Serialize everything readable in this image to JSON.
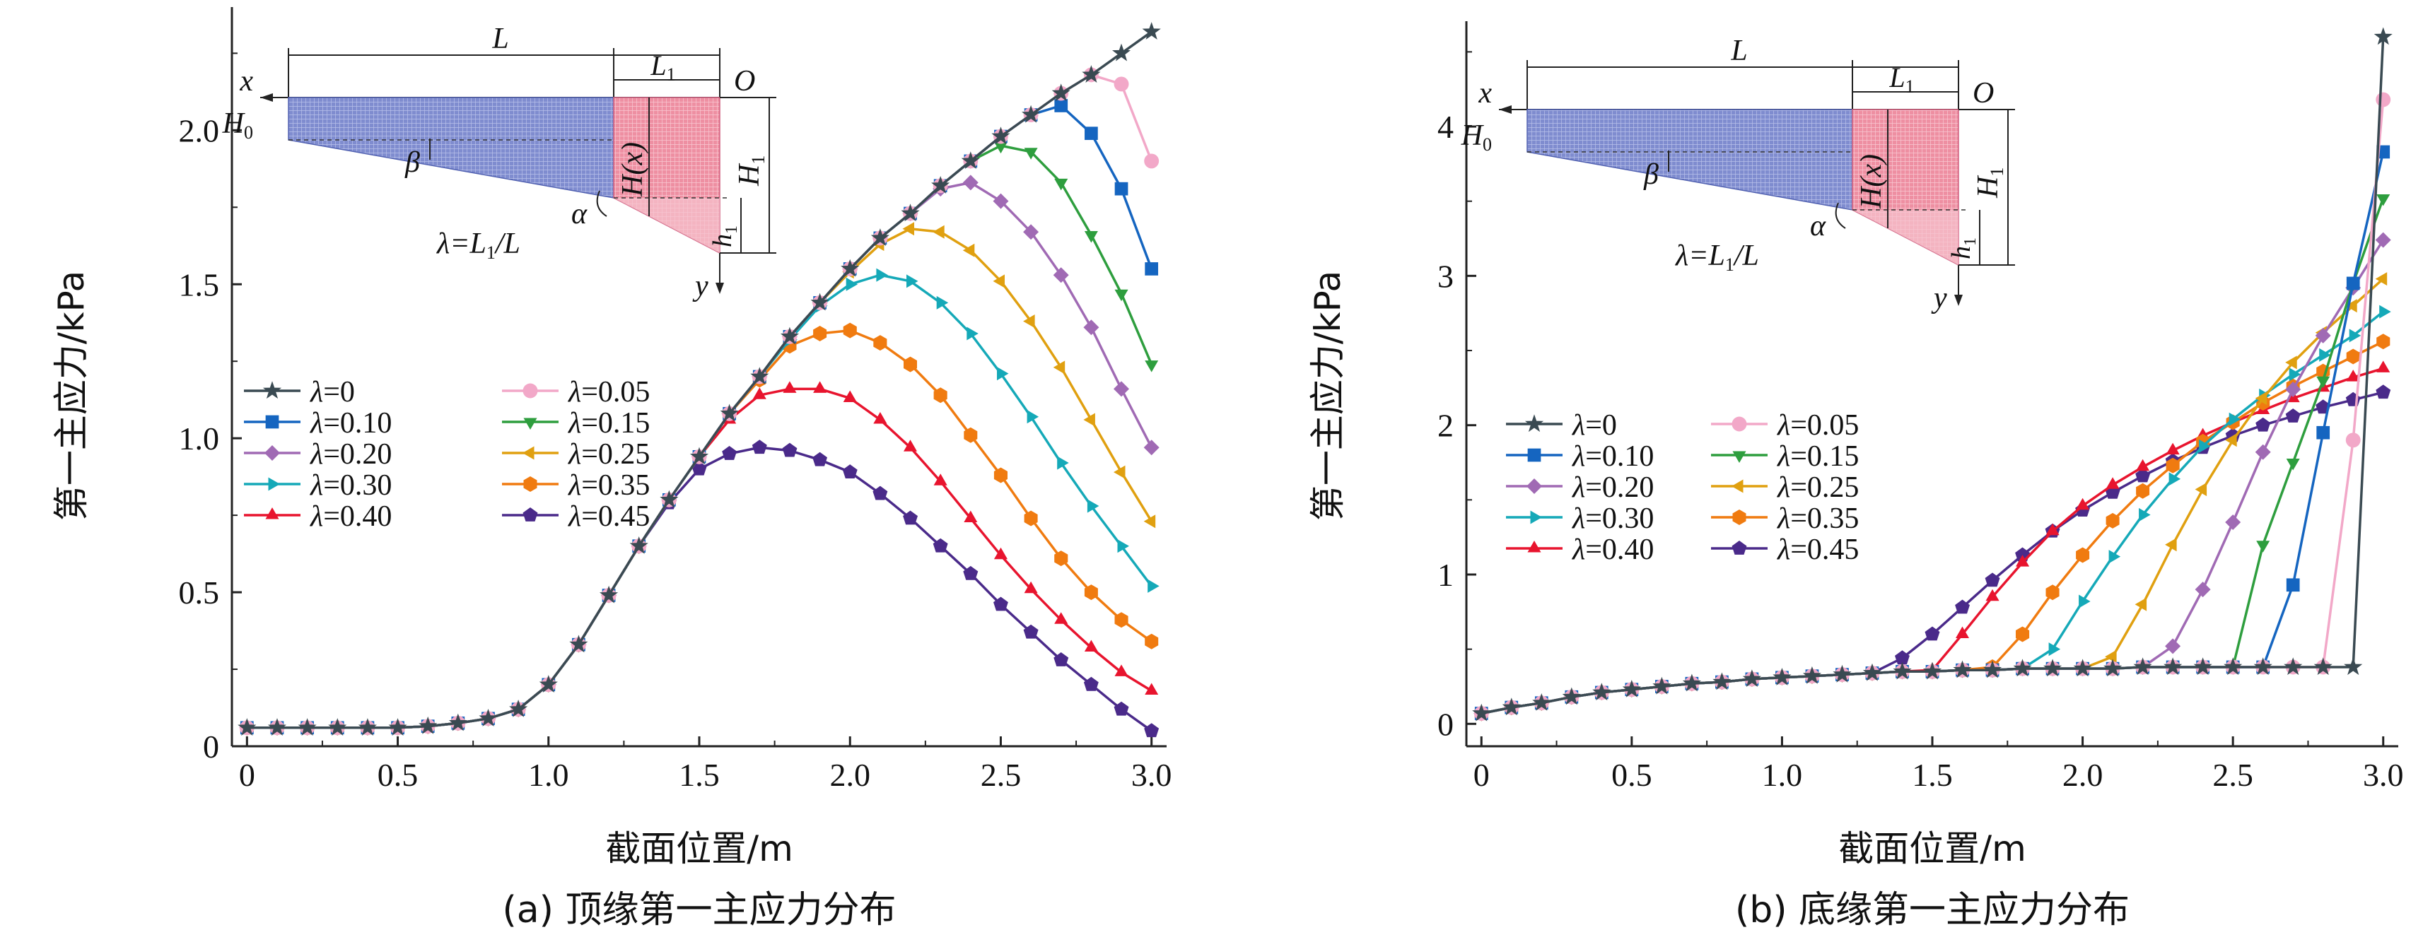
{
  "figure": {
    "x_tick_labels": [
      "0",
      "0.5",
      "1.0",
      "1.5",
      "2.0",
      "2.5",
      "3.0"
    ],
    "x_ticks": [
      0,
      0.5,
      1.0,
      1.5,
      2.0,
      2.5,
      3.0
    ]
  },
  "series_styles": [
    {
      "lambda": "0",
      "label": "λ=0",
      "color": "#3a4a52",
      "marker": "star"
    },
    {
      "lambda": "0.05",
      "label": "λ=0.05",
      "color": "#f2a8c8",
      "marker": "circle"
    },
    {
      "lambda": "0.10",
      "label": "λ=0.10",
      "color": "#1565c0",
      "marker": "square"
    },
    {
      "lambda": "0.15",
      "label": "λ=0.15",
      "color": "#2e9e3e",
      "marker": "triangle-down"
    },
    {
      "lambda": "0.20",
      "label": "λ=0.20",
      "color": "#a06ab4",
      "marker": "diamond"
    },
    {
      "lambda": "0.25",
      "label": "λ=0.25",
      "color": "#e0a010",
      "marker": "triangle-left"
    },
    {
      "lambda": "0.30",
      "label": "λ=0.30",
      "color": "#15a9b8",
      "marker": "triangle-right"
    },
    {
      "lambda": "0.35",
      "label": "λ=0.35",
      "color": "#f07b10",
      "marker": "hexagon"
    },
    {
      "lambda": "0.40",
      "label": "λ=0.40",
      "color": "#e8142e",
      "marker": "triangle-up"
    },
    {
      "lambda": "0.45",
      "label": "λ=0.45",
      "color": "#4a2a8a",
      "marker": "pentagon"
    }
  ],
  "inset": {
    "L": "L",
    "L1": "L",
    "L1_sub": "1",
    "O": "O",
    "x": "x",
    "y": "y",
    "H0": "H",
    "H0_sub": "0",
    "H1": "H",
    "H1_sub": "1",
    "Hx": "H(x)",
    "h1": "h",
    "h1_sub": "1",
    "alpha": "α",
    "beta": "β",
    "lambda_def_pre": "λ=L",
    "lambda_def_sub": "1",
    "lambda_def_post": "/L"
  },
  "chart_data": [
    {
      "type": "line",
      "caption": "(a) 顶缘第一主应力分布",
      "xlabel": "截面位置/m",
      "ylabel": "第一主应力/kPa",
      "xlim": [
        -0.05,
        3.05
      ],
      "ylim": [
        0,
        2.4
      ],
      "y_ticks": [
        0,
        0.5,
        1.0,
        1.5,
        2.0
      ],
      "y_tick_labels": [
        "0",
        "0.5",
        "1.0",
        "1.5",
        "2.0"
      ],
      "legend": "upper-left",
      "x": [
        0,
        0.1,
        0.2,
        0.3,
        0.4,
        0.5,
        0.6,
        0.7,
        0.8,
        0.9,
        1.0,
        1.1,
        1.2,
        1.3,
        1.4,
        1.5,
        1.6,
        1.7,
        1.8,
        1.9,
        2.0,
        2.1,
        2.2,
        2.3,
        2.4,
        2.5,
        2.6,
        2.7,
        2.8,
        2.9,
        3.0
      ],
      "series": [
        {
          "name": "λ=0",
          "values": [
            0.06,
            0.06,
            0.06,
            0.06,
            0.06,
            0.06,
            0.065,
            0.075,
            0.09,
            0.12,
            0.2,
            0.33,
            0.49,
            0.65,
            0.8,
            0.94,
            1.08,
            1.2,
            1.33,
            1.44,
            1.55,
            1.65,
            1.73,
            1.82,
            1.9,
            1.98,
            2.05,
            2.12,
            2.18,
            2.25,
            2.32
          ]
        },
        {
          "name": "λ=0.05",
          "values": [
            0.06,
            0.06,
            0.06,
            0.06,
            0.06,
            0.06,
            0.065,
            0.075,
            0.09,
            0.12,
            0.2,
            0.33,
            0.49,
            0.65,
            0.8,
            0.94,
            1.08,
            1.2,
            1.33,
            1.44,
            1.55,
            1.65,
            1.73,
            1.82,
            1.9,
            1.98,
            2.05,
            2.12,
            2.18,
            2.15,
            1.9
          ]
        },
        {
          "name": "λ=0.10",
          "values": [
            0.06,
            0.06,
            0.06,
            0.06,
            0.06,
            0.06,
            0.065,
            0.075,
            0.09,
            0.12,
            0.2,
            0.33,
            0.49,
            0.65,
            0.8,
            0.94,
            1.08,
            1.2,
            1.33,
            1.44,
            1.55,
            1.65,
            1.73,
            1.82,
            1.9,
            1.98,
            2.05,
            2.08,
            1.99,
            1.81,
            1.55
          ]
        },
        {
          "name": "λ=0.15",
          "values": [
            0.06,
            0.06,
            0.06,
            0.06,
            0.06,
            0.06,
            0.065,
            0.075,
            0.09,
            0.12,
            0.2,
            0.33,
            0.49,
            0.65,
            0.8,
            0.94,
            1.08,
            1.2,
            1.33,
            1.44,
            1.55,
            1.65,
            1.73,
            1.82,
            1.9,
            1.95,
            1.93,
            1.83,
            1.66,
            1.47,
            1.24
          ]
        },
        {
          "name": "λ=0.20",
          "values": [
            0.06,
            0.06,
            0.06,
            0.06,
            0.06,
            0.06,
            0.065,
            0.075,
            0.09,
            0.12,
            0.2,
            0.33,
            0.49,
            0.65,
            0.8,
            0.94,
            1.08,
            1.2,
            1.33,
            1.44,
            1.55,
            1.65,
            1.73,
            1.81,
            1.83,
            1.77,
            1.67,
            1.53,
            1.36,
            1.16,
            0.97
          ]
        },
        {
          "name": "λ=0.25",
          "values": [
            0.06,
            0.06,
            0.06,
            0.06,
            0.06,
            0.06,
            0.065,
            0.075,
            0.09,
            0.12,
            0.2,
            0.33,
            0.49,
            0.65,
            0.8,
            0.94,
            1.08,
            1.2,
            1.33,
            1.44,
            1.54,
            1.63,
            1.68,
            1.67,
            1.61,
            1.51,
            1.38,
            1.23,
            1.06,
            0.89,
            0.73
          ]
        },
        {
          "name": "λ=0.30",
          "values": [
            0.06,
            0.06,
            0.06,
            0.06,
            0.06,
            0.06,
            0.065,
            0.075,
            0.09,
            0.12,
            0.2,
            0.33,
            0.49,
            0.65,
            0.8,
            0.94,
            1.08,
            1.2,
            1.32,
            1.43,
            1.5,
            1.53,
            1.51,
            1.44,
            1.34,
            1.21,
            1.07,
            0.92,
            0.78,
            0.65,
            0.52
          ]
        },
        {
          "name": "λ=0.35",
          "values": [
            0.06,
            0.06,
            0.06,
            0.06,
            0.06,
            0.06,
            0.065,
            0.075,
            0.09,
            0.12,
            0.2,
            0.33,
            0.49,
            0.65,
            0.8,
            0.94,
            1.08,
            1.19,
            1.3,
            1.34,
            1.35,
            1.31,
            1.24,
            1.14,
            1.01,
            0.88,
            0.74,
            0.61,
            0.5,
            0.41,
            0.34
          ]
        },
        {
          "name": "λ=0.40",
          "values": [
            0.06,
            0.06,
            0.06,
            0.06,
            0.06,
            0.06,
            0.065,
            0.075,
            0.09,
            0.12,
            0.2,
            0.33,
            0.49,
            0.65,
            0.8,
            0.94,
            1.06,
            1.14,
            1.16,
            1.16,
            1.13,
            1.06,
            0.97,
            0.86,
            0.74,
            0.62,
            0.51,
            0.41,
            0.32,
            0.24,
            0.18
          ]
        },
        {
          "name": "λ=0.45",
          "values": [
            0.06,
            0.06,
            0.06,
            0.06,
            0.06,
            0.06,
            0.065,
            0.075,
            0.09,
            0.12,
            0.2,
            0.33,
            0.49,
            0.65,
            0.79,
            0.9,
            0.95,
            0.97,
            0.96,
            0.93,
            0.89,
            0.82,
            0.74,
            0.65,
            0.56,
            0.46,
            0.37,
            0.28,
            0.2,
            0.12,
            0.05
          ]
        }
      ]
    },
    {
      "type": "line",
      "caption": "(b) 底缘第一主应力分布",
      "xlabel": "截面位置/m",
      "ylabel": "第一主应力/kPa",
      "xlim": [
        -0.05,
        3.05
      ],
      "ylim": [
        -0.15,
        4.8
      ],
      "y_ticks": [
        0,
        1,
        2,
        3,
        4
      ],
      "y_tick_labels": [
        "0",
        "1",
        "2",
        "3",
        "4"
      ],
      "legend": "middle-left",
      "x": [
        0,
        0.1,
        0.2,
        0.3,
        0.4,
        0.5,
        0.6,
        0.7,
        0.8,
        0.9,
        1.0,
        1.1,
        1.2,
        1.3,
        1.4,
        1.5,
        1.6,
        1.7,
        1.8,
        1.9,
        2.0,
        2.1,
        2.2,
        2.3,
        2.4,
        2.5,
        2.6,
        2.7,
        2.8,
        2.9,
        3.0
      ],
      "series": [
        {
          "name": "λ=0",
          "values": [
            0.07,
            0.11,
            0.14,
            0.18,
            0.21,
            0.23,
            0.25,
            0.27,
            0.28,
            0.3,
            0.31,
            0.32,
            0.33,
            0.34,
            0.35,
            0.35,
            0.36,
            0.36,
            0.37,
            0.37,
            0.37,
            0.37,
            0.38,
            0.38,
            0.38,
            0.38,
            0.38,
            0.38,
            0.38,
            0.38,
            4.6
          ]
        },
        {
          "name": "λ=0.05",
          "values": [
            0.07,
            0.11,
            0.14,
            0.18,
            0.21,
            0.23,
            0.25,
            0.27,
            0.28,
            0.3,
            0.31,
            0.32,
            0.33,
            0.34,
            0.35,
            0.35,
            0.36,
            0.36,
            0.37,
            0.37,
            0.37,
            0.37,
            0.38,
            0.38,
            0.38,
            0.38,
            0.38,
            0.38,
            0.38,
            1.9,
            4.18
          ]
        },
        {
          "name": "λ=0.10",
          "values": [
            0.07,
            0.11,
            0.14,
            0.18,
            0.21,
            0.23,
            0.25,
            0.27,
            0.28,
            0.3,
            0.31,
            0.32,
            0.33,
            0.34,
            0.35,
            0.35,
            0.36,
            0.36,
            0.37,
            0.37,
            0.37,
            0.37,
            0.38,
            0.38,
            0.38,
            0.38,
            0.38,
            0.93,
            1.95,
            2.95,
            3.83
          ]
        },
        {
          "name": "λ=0.15",
          "values": [
            0.07,
            0.11,
            0.14,
            0.18,
            0.21,
            0.23,
            0.25,
            0.27,
            0.28,
            0.3,
            0.31,
            0.32,
            0.33,
            0.34,
            0.35,
            0.35,
            0.36,
            0.36,
            0.37,
            0.37,
            0.37,
            0.37,
            0.38,
            0.38,
            0.38,
            0.38,
            1.2,
            1.75,
            2.3,
            2.95,
            3.52
          ]
        },
        {
          "name": "λ=0.20",
          "values": [
            0.07,
            0.11,
            0.14,
            0.18,
            0.21,
            0.23,
            0.25,
            0.27,
            0.28,
            0.3,
            0.31,
            0.32,
            0.33,
            0.34,
            0.35,
            0.35,
            0.36,
            0.36,
            0.37,
            0.37,
            0.37,
            0.37,
            0.38,
            0.52,
            0.9,
            1.35,
            1.82,
            2.24,
            2.6,
            2.92,
            3.24
          ]
        },
        {
          "name": "λ=0.25",
          "values": [
            0.07,
            0.11,
            0.14,
            0.18,
            0.21,
            0.23,
            0.25,
            0.27,
            0.28,
            0.3,
            0.31,
            0.32,
            0.33,
            0.34,
            0.35,
            0.35,
            0.36,
            0.36,
            0.37,
            0.37,
            0.37,
            0.45,
            0.8,
            1.2,
            1.57,
            1.9,
            2.18,
            2.42,
            2.62,
            2.8,
            2.98
          ]
        },
        {
          "name": "λ=0.30",
          "values": [
            0.07,
            0.11,
            0.14,
            0.18,
            0.21,
            0.23,
            0.25,
            0.27,
            0.28,
            0.3,
            0.31,
            0.32,
            0.33,
            0.34,
            0.35,
            0.35,
            0.36,
            0.36,
            0.37,
            0.5,
            0.82,
            1.12,
            1.4,
            1.64,
            1.86,
            2.04,
            2.2,
            2.34,
            2.47,
            2.6,
            2.76
          ]
        },
        {
          "name": "λ=0.35",
          "values": [
            0.07,
            0.11,
            0.14,
            0.18,
            0.21,
            0.23,
            0.25,
            0.27,
            0.28,
            0.3,
            0.31,
            0.32,
            0.33,
            0.34,
            0.35,
            0.35,
            0.36,
            0.38,
            0.6,
            0.88,
            1.13,
            1.36,
            1.56,
            1.73,
            1.89,
            2.02,
            2.15,
            2.26,
            2.36,
            2.46,
            2.56
          ]
        },
        {
          "name": "λ=0.40",
          "values": [
            0.07,
            0.11,
            0.14,
            0.18,
            0.21,
            0.23,
            0.25,
            0.27,
            0.28,
            0.3,
            0.31,
            0.32,
            0.33,
            0.34,
            0.35,
            0.36,
            0.6,
            0.85,
            1.08,
            1.29,
            1.46,
            1.6,
            1.72,
            1.83,
            1.93,
            2.02,
            2.1,
            2.18,
            2.25,
            2.32,
            2.38
          ]
        },
        {
          "name": "λ=0.45",
          "values": [
            0.07,
            0.11,
            0.14,
            0.18,
            0.21,
            0.23,
            0.25,
            0.27,
            0.28,
            0.3,
            0.31,
            0.32,
            0.33,
            0.34,
            0.44,
            0.6,
            0.78,
            0.96,
            1.13,
            1.29,
            1.43,
            1.55,
            1.66,
            1.76,
            1.85,
            1.93,
            2.0,
            2.06,
            2.12,
            2.17,
            2.22
          ]
        }
      ]
    }
  ]
}
